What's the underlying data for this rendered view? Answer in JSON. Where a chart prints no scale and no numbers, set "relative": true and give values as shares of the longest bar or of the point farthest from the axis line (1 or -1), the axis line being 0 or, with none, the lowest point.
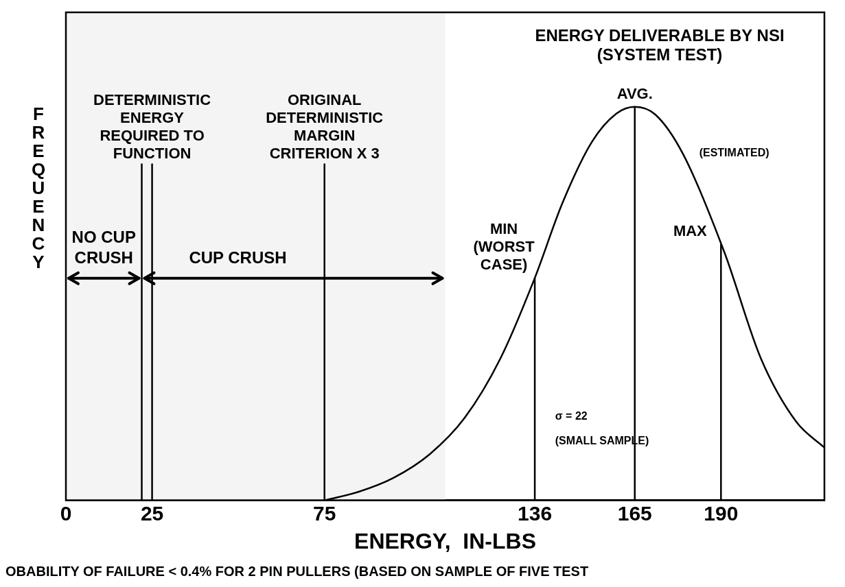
{
  "chart_data": {
    "type": "line",
    "title": "ENERGY DELIVERABLE BY NSI",
    "subtitle": "(SYSTEM TEST)",
    "xlabel": "ENERGY,  IN-LBS",
    "ylabel": "FREQUENCY",
    "relative": true,
    "grid": false,
    "xlim": [
      0,
      220
    ],
    "xticks": [
      0,
      25,
      75,
      136,
      165,
      190
    ],
    "x": [
      75,
      85,
      95,
      105.5,
      115.7,
      126,
      136,
      144,
      152.5,
      159.7,
      165,
      171,
      179,
      191,
      201.6,
      211.8,
      220
    ],
    "series": [
      {
        "color": "#000000",
        "values": [
          0,
          0.022,
          0.057,
          0.117,
          0.21,
          0.36,
          0.565,
          0.755,
          0.91,
          0.983,
          1,
          0.98,
          0.88,
          0.63,
          0.36,
          0.2,
          0.134
        ]
      }
    ],
    "ref_lines": [
      {
        "axis": "x",
        "value": 22,
        "label": null,
        "color": "#000000"
      },
      {
        "axis": "x",
        "value": 25,
        "label": "DETERMINISTIC ENERGY REQUIRED TO FUNCTION",
        "color": "#000000"
      },
      {
        "axis": "x",
        "value": 75,
        "label": "ORIGINAL DETERMINISTIC MARGIN CRITERION X 3",
        "color": "#000000"
      },
      {
        "axis": "x",
        "value": 136,
        "label": "MIN (WORST CASE)",
        "color": "#000000"
      },
      {
        "axis": "x",
        "value": 165,
        "label": "AVG.",
        "color": "#000000"
      },
      {
        "axis": "x",
        "value": 190,
        "label": "MAX",
        "color": "#000000"
      }
    ],
    "bands": [
      {
        "axis": "x",
        "from": 0,
        "to": 22,
        "label": "NO CUP CRUSH",
        "color": "#f4f4f4"
      },
      {
        "axis": "x",
        "from": 22,
        "to": 110,
        "label": "CUP CRUSH",
        "color": "#f4f4f4"
      }
    ],
    "annotations": [
      "(ESTIMATED)",
      "σ = 22",
      "(SMALL SAMPLE)",
      "OBABILITY OF FAILURE < 0.4% FOR 2 PIN PULLERS (BASED ON SAMPLE OF FIVE TEST"
    ]
  }
}
